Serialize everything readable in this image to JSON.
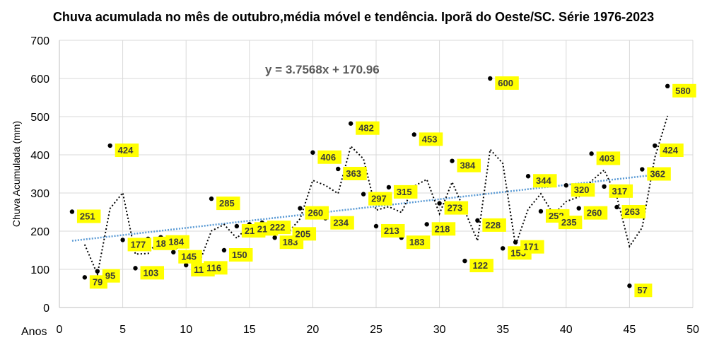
{
  "chart_data": {
    "type": "scatter",
    "title": "Chuva acumulada no mês de outubro,média móvel e tendência. Iporã do Oeste/SC. Série 1976-2023",
    "xlabel": "Anos",
    "ylabel": "Chuva Acumulada (mm)",
    "xlim": [
      0,
      50
    ],
    "ylim": [
      0,
      700
    ],
    "xticks": [
      0,
      5,
      10,
      15,
      20,
      25,
      30,
      35,
      40,
      45,
      50
    ],
    "yticks": [
      0,
      100,
      200,
      300,
      400,
      500,
      600,
      700
    ],
    "grid": true,
    "equation": "y = 3.7568x + 170.96",
    "trend": {
      "slope": 3.7568,
      "intercept": 170.96,
      "color": "#5b9bd5"
    },
    "moving_average_period": 2,
    "colors": {
      "points": "#000000",
      "labels_bg": "#ffff00",
      "moving_average": "#000000"
    },
    "x": [
      1,
      2,
      3,
      4,
      5,
      6,
      7,
      8,
      9,
      10,
      11,
      12,
      13,
      14,
      15,
      16,
      17,
      18,
      19,
      20,
      21,
      22,
      23,
      24,
      25,
      26,
      27,
      28,
      29,
      30,
      31,
      32,
      33,
      34,
      35,
      36,
      37,
      38,
      39,
      40,
      41,
      42,
      43,
      44,
      45,
      46,
      47,
      48
    ],
    "y": [
      251,
      79,
      95,
      424,
      177,
      103,
      180,
      184,
      145,
      111,
      116,
      285,
      150,
      213,
      218,
      222,
      183,
      205,
      260,
      406,
      234,
      363,
      482,
      297,
      213,
      315,
      183,
      453,
      218,
      273,
      384,
      122,
      228,
      600,
      155,
      171,
      344,
      252,
      235,
      320,
      260,
      403,
      317,
      263,
      57,
      362,
      424,
      580
    ]
  }
}
